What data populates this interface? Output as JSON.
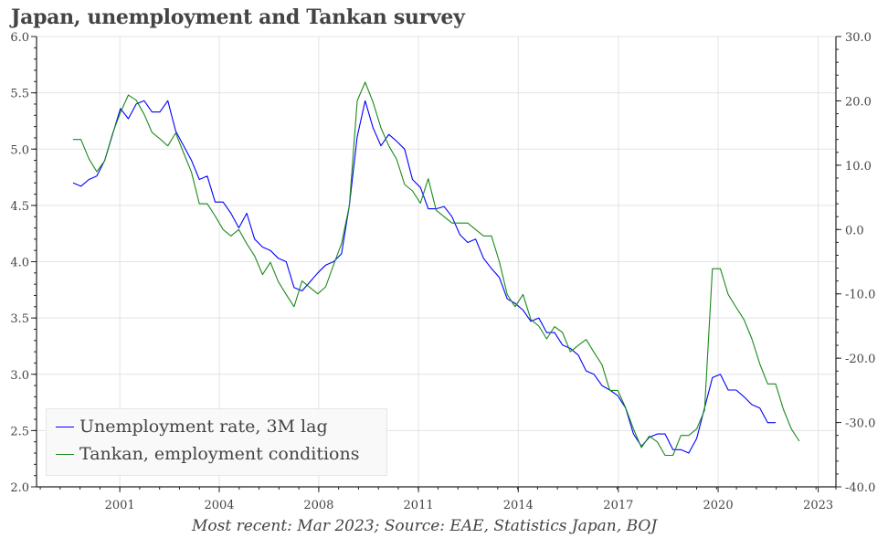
{
  "chart_data": {
    "type": "line",
    "title": "Japan, unemployment and Tankan survey",
    "footer": "Most recent: Mar 2023; Source: EAE, Statistics Japan, BOJ",
    "x_start": 2000.0,
    "x_step": 0.25,
    "xlim": [
      1999.0,
      2024.2
    ],
    "x_ticks": [
      {
        "value": 2001.48,
        "label": "2001"
      },
      {
        "value": 2004.63,
        "label": "2004"
      },
      {
        "value": 2007.78,
        "label": "2008"
      },
      {
        "value": 2010.94,
        "label": "2011"
      },
      {
        "value": 2014.1,
        "label": "2014"
      },
      {
        "value": 2017.27,
        "label": "2017"
      },
      {
        "value": 2020.43,
        "label": "2020"
      },
      {
        "value": 2023.6,
        "label": "2023"
      }
    ],
    "y_left": {
      "lim": [
        2.0,
        6.0
      ],
      "ticks": [
        "2.0",
        "2.5",
        "3.0",
        "3.5",
        "4.0",
        "4.5",
        "5.0",
        "5.5",
        "6.0"
      ]
    },
    "y_right": {
      "lim": [
        -40,
        30
      ],
      "ticks": [
        "-40.0",
        "-30.0",
        "-20.0",
        "-10.0",
        "0.0",
        "10.0",
        "20.0",
        "30.0"
      ]
    },
    "grid": true,
    "legend_position": "bottom-left",
    "series": [
      {
        "name": "Unemployment rate, 3M lag",
        "axis": "left",
        "color": "#0000ff",
        "values": [
          4.7,
          4.67,
          4.73,
          4.76,
          4.9,
          5.13,
          5.36,
          5.27,
          5.4,
          5.43,
          5.33,
          5.33,
          5.43,
          5.16,
          5.03,
          4.9,
          4.73,
          4.76,
          4.53,
          4.53,
          4.43,
          4.3,
          4.43,
          4.2,
          4.13,
          4.1,
          4.03,
          4.0,
          3.77,
          3.74,
          3.82,
          3.9,
          3.97,
          4.0,
          4.07,
          4.5,
          5.11,
          5.43,
          5.19,
          5.03,
          5.13,
          5.07,
          5.0,
          4.73,
          4.66,
          4.47,
          4.47,
          4.49,
          4.4,
          4.24,
          4.17,
          4.2,
          4.03,
          3.94,
          3.86,
          3.67,
          3.63,
          3.57,
          3.47,
          3.5,
          3.37,
          3.37,
          3.26,
          3.23,
          3.17,
          3.03,
          3.0,
          2.9,
          2.86,
          2.81,
          2.7,
          2.47,
          2.36,
          2.44,
          2.47,
          2.47,
          2.33,
          2.33,
          2.3,
          2.43,
          2.7,
          2.97,
          3.0,
          2.86,
          2.86,
          2.8,
          2.73,
          2.7,
          2.57,
          2.57
        ]
      },
      {
        "name": "Tankan, employment conditions",
        "axis": "right",
        "color": "#1a8a1a",
        "values": [
          14.0,
          14.0,
          11.0,
          9.0,
          10.7,
          14.9,
          18.2,
          20.9,
          20.1,
          17.9,
          15.1,
          14.1,
          13.0,
          15.0,
          11.9,
          8.9,
          4.0,
          4.0,
          2.1,
          0.0,
          -1.0,
          0.0,
          -2.2,
          -4.1,
          -7.0,
          -5.1,
          -8.1,
          -10.1,
          -12.0,
          -8.0,
          -9.0,
          -10.0,
          -8.9,
          -5.5,
          -2.2,
          3.7,
          20.0,
          22.9,
          19.8,
          15.8,
          13.0,
          10.9,
          7.0,
          6.0,
          4.1,
          7.9,
          3.0,
          2.0,
          1.0,
          1.0,
          1.0,
          0.0,
          -1.0,
          -1.0,
          -5.0,
          -10.1,
          -12.0,
          -10.1,
          -14.0,
          -15.0,
          -17.0,
          -15.1,
          -16.0,
          -19.0,
          -18.0,
          -17.1,
          -19.1,
          -21.0,
          -25.0,
          -25.0,
          -27.7,
          -31.0,
          -33.9,
          -32.1,
          -33.0,
          -35.1,
          -35.1,
          -32.0,
          -32.0,
          -31.0,
          -28.1,
          -6.1,
          -6.1,
          -10.1,
          -12.1,
          -14.0,
          -17.0,
          -20.9,
          -24.0,
          -24.0,
          -28.0,
          -31.0,
          -32.9
        ]
      }
    ]
  }
}
